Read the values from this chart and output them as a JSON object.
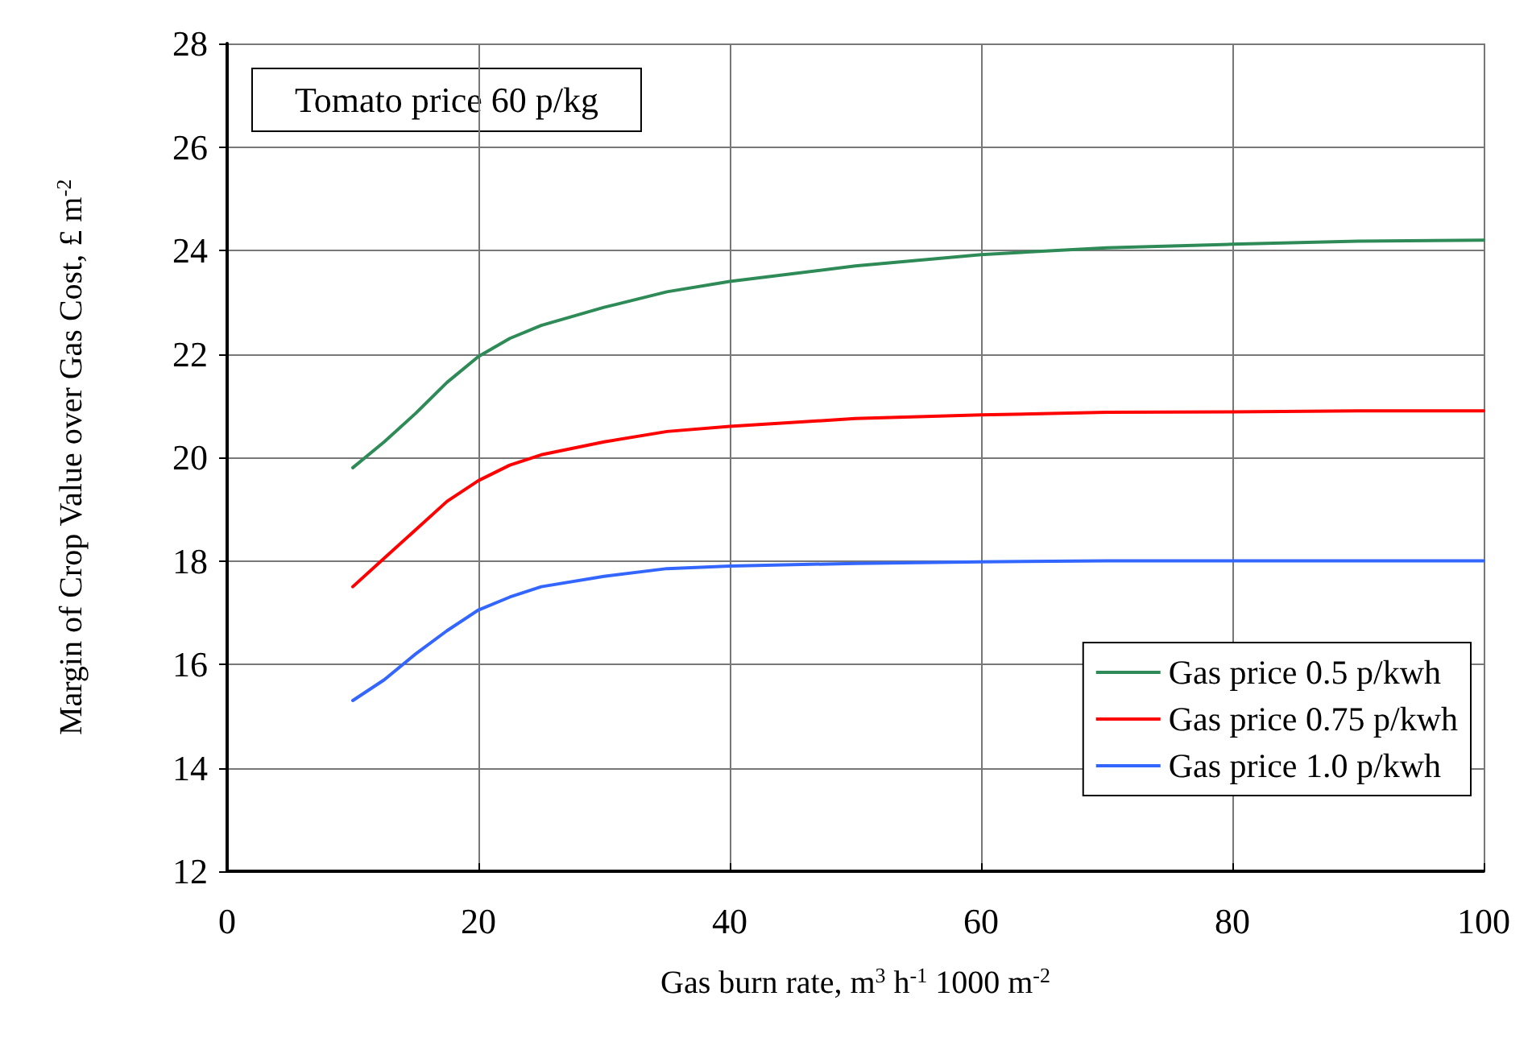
{
  "chart_data": {
    "type": "line",
    "xlabel": "Gas burn rate, m$^{3}$ h$^{-1}$ 1000 m$^{-2}$",
    "ylabel": "Margin of Crop Value over Gas Cost, £ m$^{-2}$",
    "annotations": [
      "Tomato price 60 p/kg"
    ],
    "x": [
      10,
      12.5,
      15,
      17.5,
      20,
      22.5,
      25,
      30,
      35,
      40,
      50,
      60,
      70,
      80,
      90,
      100
    ],
    "series": [
      {
        "name": "Gas price 0.5 p/kwh",
        "color": "#2e8b57",
        "values": [
          19.8,
          20.3,
          20.85,
          21.45,
          21.95,
          22.3,
          22.55,
          22.9,
          23.2,
          23.4,
          23.7,
          23.92,
          24.05,
          24.12,
          24.18,
          24.2
        ]
      },
      {
        "name": "Gas price 0.75 p/kwh",
        "color": "#ff0000",
        "values": [
          17.5,
          18.05,
          18.6,
          19.15,
          19.55,
          19.85,
          20.05,
          20.3,
          20.5,
          20.6,
          20.75,
          20.82,
          20.87,
          20.88,
          20.9,
          20.9
        ]
      },
      {
        "name": "Gas price 1.0 p/kwh",
        "color": "#3366ff",
        "values": [
          15.3,
          15.7,
          16.2,
          16.65,
          17.05,
          17.3,
          17.5,
          17.7,
          17.85,
          17.9,
          17.95,
          17.98,
          18.0,
          18.0,
          18.0,
          18.0
        ]
      }
    ],
    "xlim": [
      0,
      100
    ],
    "xticks": [
      0,
      20,
      40,
      60,
      80,
      100
    ],
    "ylim": [
      12,
      28
    ],
    "yticks": [
      12,
      14,
      16,
      18,
      20,
      22,
      24,
      26,
      28
    ],
    "grid": true,
    "legend": "bottom right",
    "marker": "none",
    "line_style": "solid"
  }
}
